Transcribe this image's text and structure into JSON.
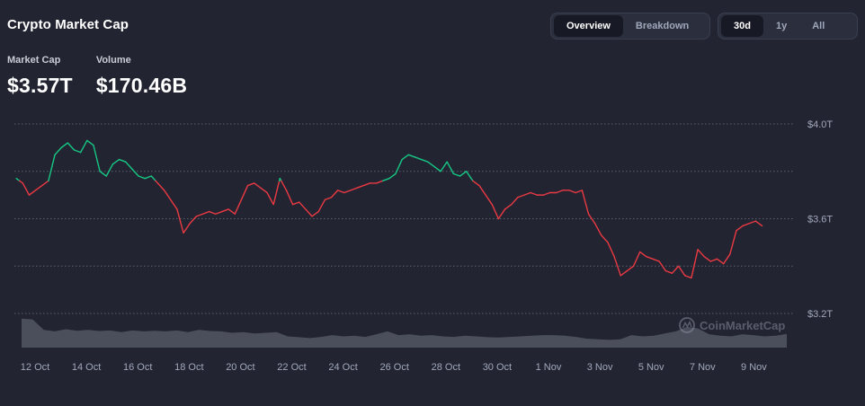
{
  "header": {
    "title": "Crypto Market Cap"
  },
  "stats": {
    "market_cap": {
      "label": "Market Cap",
      "value": "$3.57T"
    },
    "volume": {
      "label": "Volume",
      "value": "$170.46B"
    }
  },
  "view_toggle": {
    "options": [
      "Overview",
      "Breakdown"
    ],
    "selected": "Overview"
  },
  "range_toggle": {
    "options": [
      "30d",
      "1y",
      "All"
    ],
    "selected": "30d"
  },
  "watermark": {
    "text": "CoinMarketCap",
    "icon": "coinmarketcap-logo-icon"
  },
  "colors": {
    "up": "#16c784",
    "down": "#ea3943",
    "volume": "#5a5e6b",
    "grid": "#5b6070",
    "background": "#222531"
  },
  "chart_data": {
    "type": "line",
    "x_unit": "date",
    "x_tick_labels": [
      "12 Oct",
      "14 Oct",
      "16 Oct",
      "18 Oct",
      "20 Oct",
      "22 Oct",
      "24 Oct",
      "26 Oct",
      "28 Oct",
      "30 Oct",
      "1 Nov",
      "3 Nov",
      "5 Nov",
      "7 Nov",
      "9 Nov"
    ],
    "y_tick_labels": [
      "$4.0T",
      "$3.6T",
      "$3.2T"
    ],
    "ylim": [
      3.2,
      4.0
    ],
    "baseline_value": 3.76,
    "grid": "horizontal-dotted",
    "series": [
      {
        "values": [
          [
            "2024-10-11T06:00",
            3.77
          ],
          [
            "2024-10-11T12:00",
            3.75
          ],
          [
            "2024-10-11T18:00",
            3.7
          ],
          [
            "2024-10-12T00:00",
            3.72
          ],
          [
            "2024-10-12T06:00",
            3.74
          ],
          [
            "2024-10-12T12:00",
            3.76
          ],
          [
            "2024-10-12T18:00",
            3.87
          ],
          [
            "2024-10-13T00:00",
            3.9
          ],
          [
            "2024-10-13T06:00",
            3.92
          ],
          [
            "2024-10-13T12:00",
            3.89
          ],
          [
            "2024-10-13T18:00",
            3.88
          ],
          [
            "2024-10-14T00:00",
            3.93
          ],
          [
            "2024-10-14T06:00",
            3.91
          ],
          [
            "2024-10-14T12:00",
            3.8
          ],
          [
            "2024-10-14T18:00",
            3.78
          ],
          [
            "2024-10-15T00:00",
            3.83
          ],
          [
            "2024-10-15T06:00",
            3.85
          ],
          [
            "2024-10-15T12:00",
            3.84
          ],
          [
            "2024-10-15T18:00",
            3.81
          ],
          [
            "2024-10-16T00:00",
            3.78
          ],
          [
            "2024-10-16T06:00",
            3.77
          ],
          [
            "2024-10-16T12:00",
            3.78
          ],
          [
            "2024-10-16T18:00",
            3.75
          ],
          [
            "2024-10-17T00:00",
            3.72
          ],
          [
            "2024-10-17T06:00",
            3.68
          ],
          [
            "2024-10-17T12:00",
            3.64
          ],
          [
            "2024-10-17T18:00",
            3.54
          ],
          [
            "2024-10-18T00:00",
            3.58
          ],
          [
            "2024-10-18T06:00",
            3.61
          ],
          [
            "2024-10-18T12:00",
            3.62
          ],
          [
            "2024-10-18T18:00",
            3.63
          ],
          [
            "2024-10-19T00:00",
            3.62
          ],
          [
            "2024-10-19T06:00",
            3.63
          ],
          [
            "2024-10-19T12:00",
            3.64
          ],
          [
            "2024-10-19T18:00",
            3.62
          ],
          [
            "2024-10-20T00:00",
            3.68
          ],
          [
            "2024-10-20T06:00",
            3.74
          ],
          [
            "2024-10-20T12:00",
            3.75
          ],
          [
            "2024-10-20T18:00",
            3.73
          ],
          [
            "2024-10-21T00:00",
            3.71
          ],
          [
            "2024-10-21T06:00",
            3.66
          ],
          [
            "2024-10-21T12:00",
            3.77
          ],
          [
            "2024-10-21T18:00",
            3.72
          ],
          [
            "2024-10-22T00:00",
            3.66
          ],
          [
            "2024-10-22T06:00",
            3.67
          ],
          [
            "2024-10-22T12:00",
            3.64
          ],
          [
            "2024-10-22T18:00",
            3.61
          ],
          [
            "2024-10-23T00:00",
            3.63
          ],
          [
            "2024-10-23T06:00",
            3.68
          ],
          [
            "2024-10-23T12:00",
            3.69
          ],
          [
            "2024-10-23T18:00",
            3.72
          ],
          [
            "2024-10-24T00:00",
            3.71
          ],
          [
            "2024-10-24T06:00",
            3.72
          ],
          [
            "2024-10-24T12:00",
            3.73
          ],
          [
            "2024-10-24T18:00",
            3.74
          ],
          [
            "2024-10-25T00:00",
            3.75
          ],
          [
            "2024-10-25T06:00",
            3.75
          ],
          [
            "2024-10-25T12:00",
            3.76
          ],
          [
            "2024-10-25T18:00",
            3.77
          ],
          [
            "2024-10-26T00:00",
            3.79
          ],
          [
            "2024-10-26T06:00",
            3.85
          ],
          [
            "2024-10-26T12:00",
            3.87
          ],
          [
            "2024-10-26T18:00",
            3.86
          ],
          [
            "2024-10-27T00:00",
            3.85
          ],
          [
            "2024-10-27T06:00",
            3.84
          ],
          [
            "2024-10-27T12:00",
            3.82
          ],
          [
            "2024-10-27T18:00",
            3.8
          ],
          [
            "2024-10-28T00:00",
            3.84
          ],
          [
            "2024-10-28T06:00",
            3.79
          ],
          [
            "2024-10-28T12:00",
            3.78
          ],
          [
            "2024-10-28T18:00",
            3.8
          ],
          [
            "2024-10-29T00:00",
            3.76
          ],
          [
            "2024-10-29T06:00",
            3.74
          ],
          [
            "2024-10-29T12:00",
            3.7
          ],
          [
            "2024-10-29T18:00",
            3.66
          ],
          [
            "2024-10-30T00:00",
            3.6
          ],
          [
            "2024-10-30T06:00",
            3.64
          ],
          [
            "2024-10-30T12:00",
            3.66
          ],
          [
            "2024-10-30T18:00",
            3.69
          ],
          [
            "2024-10-31T00:00",
            3.7
          ],
          [
            "2024-10-31T06:00",
            3.71
          ],
          [
            "2024-10-31T12:00",
            3.7
          ],
          [
            "2024-10-31T18:00",
            3.7
          ],
          [
            "2024-11-01T00:00",
            3.71
          ],
          [
            "2024-11-01T06:00",
            3.71
          ],
          [
            "2024-11-01T12:00",
            3.72
          ],
          [
            "2024-11-01T18:00",
            3.72
          ],
          [
            "2024-11-02T00:00",
            3.71
          ],
          [
            "2024-11-02T06:00",
            3.72
          ],
          [
            "2024-11-02T12:00",
            3.62
          ],
          [
            "2024-11-02T18:00",
            3.58
          ],
          [
            "2024-11-03T00:00",
            3.53
          ],
          [
            "2024-11-03T06:00",
            3.5
          ],
          [
            "2024-11-03T12:00",
            3.44
          ],
          [
            "2024-11-03T18:00",
            3.36
          ],
          [
            "2024-11-04T00:00",
            3.38
          ],
          [
            "2024-11-04T06:00",
            3.4
          ],
          [
            "2024-11-04T12:00",
            3.46
          ],
          [
            "2024-11-04T18:00",
            3.44
          ],
          [
            "2024-11-05T00:00",
            3.43
          ],
          [
            "2024-11-05T06:00",
            3.42
          ],
          [
            "2024-11-05T12:00",
            3.38
          ],
          [
            "2024-11-05T18:00",
            3.37
          ],
          [
            "2024-11-06T00:00",
            3.4
          ],
          [
            "2024-11-06T06:00",
            3.36
          ],
          [
            "2024-11-06T12:00",
            3.35
          ],
          [
            "2024-11-06T18:00",
            3.47
          ],
          [
            "2024-11-07T00:00",
            3.44
          ],
          [
            "2024-11-07T06:00",
            3.42
          ],
          [
            "2024-11-07T12:00",
            3.43
          ],
          [
            "2024-11-07T18:00",
            3.41
          ],
          [
            "2024-11-08T00:00",
            3.45
          ],
          [
            "2024-11-08T06:00",
            3.55
          ],
          [
            "2024-11-08T12:00",
            3.57
          ],
          [
            "2024-11-08T18:00",
            3.58
          ],
          [
            "2024-11-09T00:00",
            3.59
          ],
          [
            "2024-11-09T06:00",
            3.57
          ]
        ]
      }
    ],
    "volume_series": [
      0.98,
      0.95,
      0.6,
      0.55,
      0.62,
      0.57,
      0.6,
      0.56,
      0.58,
      0.52,
      0.58,
      0.55,
      0.57,
      0.55,
      0.58,
      0.52,
      0.6,
      0.56,
      0.55,
      0.5,
      0.52,
      0.48,
      0.5,
      0.52,
      0.38,
      0.35,
      0.32,
      0.36,
      0.42,
      0.38,
      0.4,
      0.36,
      0.45,
      0.55,
      0.42,
      0.45,
      0.4,
      0.42,
      0.38,
      0.36,
      0.4,
      0.38,
      0.35,
      0.34,
      0.36,
      0.38,
      0.4,
      0.42,
      0.42,
      0.4,
      0.36,
      0.3,
      0.28,
      0.26,
      0.28,
      0.42,
      0.38,
      0.4,
      0.48,
      0.55,
      0.7,
      0.65,
      0.45,
      0.4,
      0.38,
      0.45,
      0.42,
      0.38,
      0.4,
      0.46
    ]
  }
}
